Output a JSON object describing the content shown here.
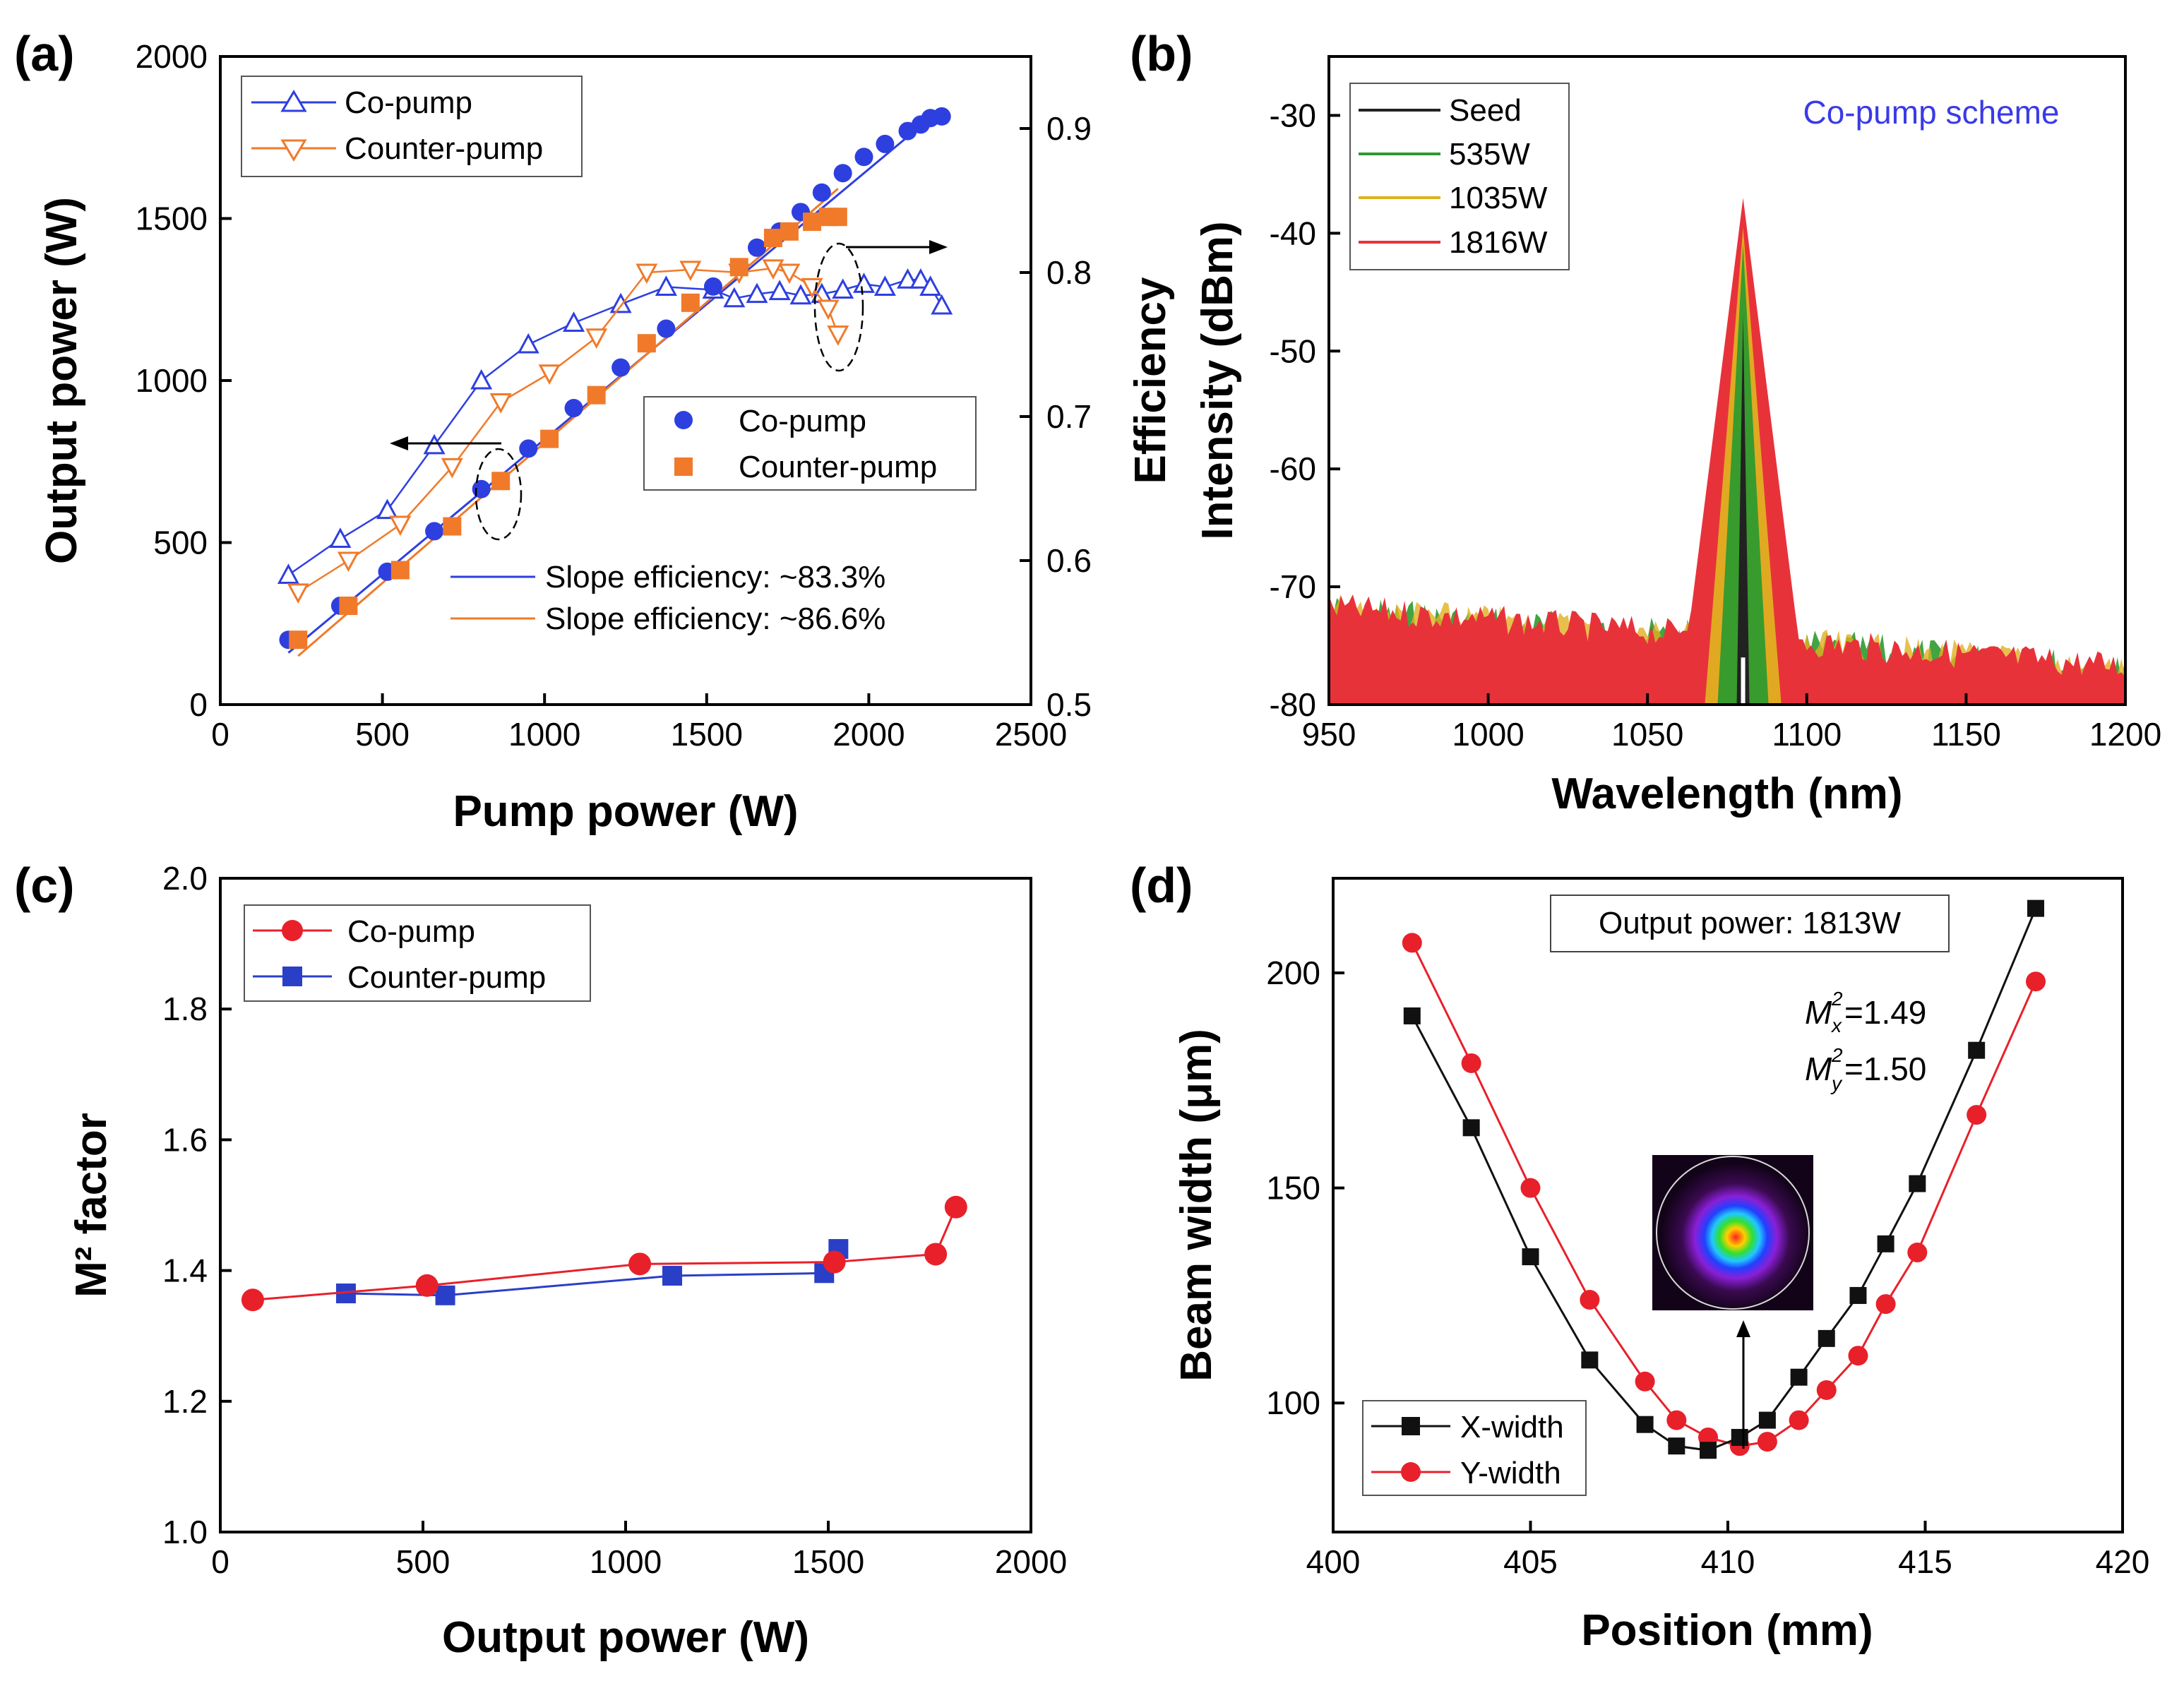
{
  "colors": {
    "co_blue": "#2e3fe0",
    "counter_orange": "#f07a2a",
    "red": "#e8202a",
    "sq_blue": "#2a3fc8",
    "black": "#111111",
    "seed": "#222222",
    "green535": "#2e9a2e",
    "yellow1035": "#e0b020",
    "red1816": "#e8323a",
    "annot_blue": "#3a3ae8"
  },
  "chart_data": [
    {
      "id": "a",
      "type": "line",
      "panel_label": "(a)",
      "xlabel": "Pump power (W)",
      "ylabel": "Output power (W)",
      "y2label": "Efficiency",
      "xlim": [
        0,
        2500
      ],
      "ylim": [
        0,
        2000
      ],
      "y2lim": [
        0.5,
        0.95
      ],
      "xticks": [
        "0",
        "500",
        "1000",
        "1500",
        "2000",
        "2500"
      ],
      "yticks": [
        "0",
        "500",
        "1000",
        "1500",
        "2000"
      ],
      "y2ticks": [
        "0.5",
        "0.6",
        "0.7",
        "0.8",
        "0.9"
      ],
      "series_output": [
        {
          "name": "Co-pump",
          "marker": "circle",
          "color": "#2e3fe0",
          "x": [
            210,
            370,
            515,
            660,
            805,
            950,
            1090,
            1235,
            1375,
            1520,
            1655,
            1725,
            1790,
            1855,
            1920,
            1985,
            2050,
            2120,
            2160,
            2190,
            2225
          ],
          "y": [
            200,
            305,
            410,
            535,
            665,
            790,
            915,
            1040,
            1160,
            1290,
            1410,
            1460,
            1520,
            1580,
            1640,
            1690,
            1730,
            1770,
            1790,
            1810,
            1815
          ]
        },
        {
          "name": "Counter-pump",
          "marker": "square",
          "color": "#f07a2a",
          "x": [
            240,
            395,
            555,
            715,
            865,
            1015,
            1160,
            1315,
            1450,
            1600,
            1705,
            1755,
            1825,
            1875,
            1905
          ],
          "y": [
            200,
            305,
            415,
            550,
            690,
            820,
            955,
            1115,
            1240,
            1350,
            1440,
            1460,
            1490,
            1505,
            1505
          ]
        }
      ],
      "series_efficiency": [
        {
          "name": "Co-pump",
          "marker": "triangle-up",
          "color": "#2e3fe0",
          "x": [
            210,
            370,
            515,
            660,
            805,
            950,
            1090,
            1235,
            1375,
            1520,
            1585,
            1655,
            1725,
            1790,
            1855,
            1920,
            1985,
            2050,
            2120,
            2160,
            2190,
            2225
          ],
          "y": [
            0.59,
            0.615,
            0.635,
            0.68,
            0.725,
            0.75,
            0.765,
            0.778,
            0.79,
            0.788,
            0.782,
            0.785,
            0.787,
            0.784,
            0.785,
            0.788,
            0.792,
            0.79,
            0.795,
            0.795,
            0.79,
            0.777
          ]
        },
        {
          "name": "Counter-pump",
          "marker": "triangle-down",
          "color": "#f07a2a",
          "x": [
            240,
            395,
            555,
            715,
            865,
            1015,
            1160,
            1315,
            1450,
            1600,
            1705,
            1755,
            1825,
            1875,
            1905
          ],
          "y": [
            0.578,
            0.6,
            0.625,
            0.665,
            0.71,
            0.73,
            0.755,
            0.8,
            0.802,
            0.8,
            0.803,
            0.8,
            0.79,
            0.775,
            0.757
          ]
        }
      ],
      "fit_lines": [
        {
          "label": "Slope efficiency: ~83.3%",
          "color": "#2e3fe0",
          "x": [
            210,
            2225
          ],
          "y": [
            160,
            1840
          ]
        },
        {
          "label": "Slope efficiency: ~86.6%",
          "color": "#f07a2a",
          "x": [
            240,
            1905
          ],
          "y": [
            150,
            1592
          ]
        }
      ],
      "legend_upper": [
        "Co-pump",
        "Counter-pump"
      ],
      "legend_lower": [
        "Co-pump",
        "Counter-pump"
      ]
    },
    {
      "id": "b",
      "type": "line",
      "panel_label": "(b)",
      "xlabel": "Wavelength (nm)",
      "ylabel": "Intensity (dBm)",
      "xlim": [
        950,
        1200
      ],
      "ylim": [
        -80,
        -25
      ],
      "xticks": [
        "950",
        "1000",
        "1050",
        "1100",
        "1150",
        "1200"
      ],
      "yticks": [
        "-80",
        "-70",
        "-60",
        "-50",
        "-40",
        "-30"
      ],
      "annotation": "Co-pump scheme",
      "center_nm": 1080,
      "noise_floor": {
        "left_db": -70.5,
        "right_db": -75.5,
        "floor_db": -80
      },
      "series": [
        {
          "name": "Seed",
          "color": "#222222",
          "peak_db": -47,
          "halfwidth_nm": 2
        },
        {
          "name": "535W",
          "color": "#2e9a2e",
          "peak_db": -41,
          "halfwidth_nm": 8
        },
        {
          "name": "1035W",
          "color": "#e0b020",
          "peak_db": -39.5,
          "halfwidth_nm": 12
        },
        {
          "name": "1816W",
          "color": "#e8323a",
          "peak_db": -37,
          "halfwidth_nm": 20
        }
      ]
    },
    {
      "id": "c",
      "type": "line",
      "panel_label": "(c)",
      "xlabel": "Output power (W)",
      "ylabel": "M² factor",
      "xlim": [
        0,
        2000
      ],
      "ylim": [
        1.0,
        2.0
      ],
      "xticks": [
        "0",
        "500",
        "1000",
        "1500",
        "2000"
      ],
      "yticks": [
        "1.0",
        "1.2",
        "1.4",
        "1.6",
        "1.8",
        "2.0"
      ],
      "series": [
        {
          "name": "Co-pump",
          "marker": "circle",
          "color": "#e8202a",
          "x": [
            80,
            510,
            1035,
            1515,
            1765,
            1815
          ],
          "y": [
            1.355,
            1.377,
            1.41,
            1.413,
            1.425,
            1.497
          ]
        },
        {
          "name": "Counter-pump",
          "marker": "square",
          "color": "#2a3fc8",
          "x": [
            310,
            555,
            1115,
            1490,
            1525
          ],
          "y": [
            1.365,
            1.362,
            1.392,
            1.396,
            1.433
          ]
        }
      ]
    },
    {
      "id": "d",
      "type": "line",
      "panel_label": "(d)",
      "xlabel": "Position (mm)",
      "ylabel": "Beam width (μm)",
      "xlim": [
        400,
        420
      ],
      "ylim": [
        70,
        222
      ],
      "xticks": [
        "400",
        "405",
        "410",
        "415",
        "420"
      ],
      "yticks": [
        "100",
        "150",
        "200"
      ],
      "ytick_values": [
        100,
        150,
        200
      ],
      "annotation_box": "Output power: 1813W",
      "m2x": "=1.49",
      "m2y": "=1.50",
      "series": [
        {
          "name": "X-width",
          "marker": "square",
          "color": "#111111",
          "x": [
            402,
            403.5,
            405,
            406.5,
            407.9,
            408.7,
            409.5,
            410.3,
            411,
            411.8,
            412.5,
            413.3,
            414,
            414.8,
            416.3,
            417.8
          ],
          "y": [
            190,
            164,
            134,
            110,
            95,
            90,
            89,
            92,
            96,
            106,
            115,
            125,
            137,
            151,
            182,
            215
          ]
        },
        {
          "name": "Y-width",
          "marker": "circle",
          "color": "#e8202a",
          "x": [
            402,
            403.5,
            405,
            406.5,
            407.9,
            408.7,
            409.5,
            410.3,
            411,
            411.8,
            412.5,
            413.3,
            414,
            414.8,
            416.3,
            417.8
          ],
          "y": [
            207,
            179,
            150,
            124,
            105,
            96,
            92,
            90,
            91,
            96,
            103,
            111,
            123,
            135,
            167,
            198
          ]
        }
      ]
    }
  ]
}
